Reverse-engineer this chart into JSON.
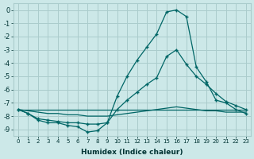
{
  "xlabel": "Humidex (Indice chaleur)",
  "bg_color": "#cce8e8",
  "grid_color": "#aacccc",
  "line_color": "#006666",
  "xlim": [
    -0.5,
    23.5
  ],
  "ylim": [
    -9.5,
    0.5
  ],
  "xticks": [
    0,
    1,
    2,
    3,
    4,
    5,
    6,
    7,
    8,
    9,
    10,
    11,
    12,
    13,
    14,
    15,
    16,
    17,
    18,
    19,
    20,
    21,
    22,
    23
  ],
  "yticks": [
    0,
    -1,
    -2,
    -3,
    -4,
    -5,
    -6,
    -7,
    -8,
    -9
  ],
  "line1_x": [
    0,
    1,
    2,
    3,
    4,
    5,
    6,
    7,
    8,
    9,
    10,
    11,
    12,
    13,
    14,
    15,
    16,
    17,
    18,
    19,
    20,
    21,
    22,
    23
  ],
  "line1_y": [
    -7.5,
    -7.8,
    -8.3,
    -8.5,
    -8.5,
    -8.7,
    -8.8,
    -9.2,
    -9.1,
    -8.5,
    -6.5,
    -5.0,
    -3.8,
    -2.8,
    -1.8,
    -0.15,
    0.0,
    -0.5,
    -4.3,
    -5.4,
    -6.8,
    -7.0,
    -7.5,
    -7.8
  ],
  "line2_x": [
    0,
    1,
    2,
    3,
    4,
    5,
    6,
    7,
    8,
    9,
    10,
    11,
    12,
    13,
    14,
    15,
    16,
    17,
    18,
    19,
    20,
    21,
    22,
    23
  ],
  "line2_y": [
    -7.5,
    -7.8,
    -8.2,
    -8.3,
    -8.4,
    -8.5,
    -8.5,
    -8.6,
    -8.6,
    -8.5,
    -7.5,
    -6.8,
    -6.2,
    -5.6,
    -5.1,
    -3.5,
    -3.0,
    -4.1,
    -5.0,
    -5.6,
    -6.3,
    -6.9,
    -7.2,
    -7.5
  ],
  "line3_x": [
    0,
    23
  ],
  "line3_y": [
    -7.5,
    -7.5
  ],
  "line4_x": [
    0,
    1,
    2,
    3,
    4,
    5,
    6,
    7,
    8,
    9,
    10,
    11,
    12,
    13,
    14,
    15,
    16,
    17,
    18,
    19,
    20,
    21,
    22,
    23
  ],
  "line4_y": [
    -7.5,
    -7.6,
    -7.7,
    -7.8,
    -7.8,
    -7.9,
    -7.9,
    -8.0,
    -8.0,
    -8.0,
    -7.9,
    -7.8,
    -7.7,
    -7.6,
    -7.5,
    -7.4,
    -7.3,
    -7.4,
    -7.5,
    -7.6,
    -7.6,
    -7.7,
    -7.7,
    -7.7
  ]
}
